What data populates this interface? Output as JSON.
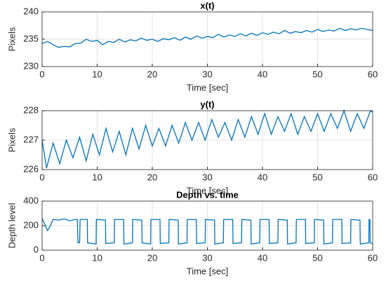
{
  "chart_data": [
    {
      "type": "line",
      "title": "x(t)",
      "xlabel": "Time [sec]",
      "ylabel": "Pixels",
      "color": "#0072bd",
      "grid": true,
      "xlim": [
        0,
        60
      ],
      "xticks": [
        0,
        10,
        20,
        30,
        40,
        50,
        60
      ],
      "ylim": [
        230,
        240
      ],
      "yticks": [
        230,
        235,
        240
      ],
      "x": [
        0,
        1,
        2,
        3,
        4,
        5,
        6,
        7,
        8,
        9,
        10,
        11,
        12,
        13,
        14,
        15,
        16,
        17,
        18,
        19,
        20,
        21,
        22,
        23,
        24,
        25,
        26,
        27,
        28,
        29,
        30,
        31,
        32,
        33,
        34,
        35,
        36,
        37,
        38,
        39,
        40,
        41,
        42,
        43,
        44,
        45,
        46,
        47,
        48,
        49,
        50,
        51,
        52,
        53,
        54,
        55,
        56,
        57,
        58,
        59,
        60
      ],
      "values": [
        234.2,
        234.6,
        234.0,
        233.5,
        233.7,
        233.6,
        234.2,
        234.3,
        235.0,
        234.6,
        234.8,
        234.0,
        234.6,
        234.4,
        235.0,
        234.5,
        234.9,
        234.7,
        235.2,
        234.8,
        235.0,
        234.6,
        235.1,
        234.9,
        235.3,
        234.8,
        235.4,
        235.0,
        235.6,
        235.2,
        235.5,
        235.3,
        235.9,
        235.4,
        235.8,
        235.5,
        236.0,
        235.6,
        236.1,
        235.7,
        236.2,
        235.9,
        236.3,
        236.0,
        236.6,
        236.1,
        236.4,
        236.2,
        236.6,
        236.3,
        236.8,
        236.4,
        236.7,
        236.5,
        237.0,
        236.6,
        236.9,
        236.7,
        237.0,
        236.8,
        236.6
      ]
    },
    {
      "type": "line",
      "title": "y(t)",
      "xlabel": "Time [sec]",
      "ylabel": "Pixels",
      "color": "#0072bd",
      "grid": true,
      "xlim": [
        0,
        60
      ],
      "xticks": [
        0,
        10,
        20,
        30,
        40,
        50,
        60
      ],
      "ylim": [
        226,
        228
      ],
      "yticks": [
        226,
        227,
        228
      ],
      "x": [
        0,
        0.8,
        2.0,
        3.2,
        4.4,
        5.6,
        6.8,
        8.0,
        9.2,
        10.4,
        11.6,
        12.8,
        14.0,
        15.2,
        16.4,
        17.6,
        18.8,
        20.0,
        21.2,
        22.4,
        23.6,
        24.8,
        26.0,
        27.2,
        28.4,
        29.6,
        30.8,
        32.0,
        33.2,
        34.4,
        35.6,
        36.8,
        38.0,
        39.2,
        40.4,
        41.6,
        42.8,
        44.0,
        45.2,
        46.4,
        47.6,
        48.8,
        50.0,
        51.2,
        52.4,
        53.6,
        54.8,
        56.0,
        57.2,
        58.4,
        59.6,
        60
      ],
      "values": [
        227.0,
        226.05,
        226.9,
        226.2,
        227.0,
        226.4,
        227.1,
        226.3,
        227.2,
        226.5,
        227.4,
        226.6,
        227.3,
        226.5,
        227.4,
        226.7,
        227.5,
        226.8,
        227.4,
        226.8,
        227.5,
        226.9,
        227.6,
        227.0,
        227.6,
        227.0,
        227.7,
        227.1,
        227.6,
        227.0,
        227.7,
        227.1,
        227.8,
        227.2,
        227.9,
        227.2,
        227.8,
        227.3,
        227.9,
        227.2,
        227.8,
        227.3,
        227.9,
        227.3,
        227.9,
        227.4,
        228.0,
        227.3,
        227.9,
        227.4,
        228.0,
        227.95
      ]
    },
    {
      "type": "line",
      "title": "Depth vs. time",
      "xlabel": "Time [sec]",
      "ylabel": "Depth level",
      "color": "#0072bd",
      "grid": true,
      "xlim": [
        0,
        60
      ],
      "xticks": [
        0,
        10,
        20,
        30,
        40,
        50,
        60
      ],
      "ylim": [
        0,
        400
      ],
      "yticks": [
        0,
        200,
        400
      ],
      "x": [
        0,
        0.5,
        1,
        1.5,
        2,
        3,
        4,
        5,
        6,
        6.4,
        6.5,
        6.8,
        6.9,
        8.2,
        8.25,
        9.8,
        9.85,
        11.5,
        11.55,
        13.1,
        13.15,
        14.8,
        14.85,
        16.4,
        16.45,
        18.1,
        18.15,
        19.7,
        19.75,
        21.4,
        21.45,
        23.0,
        23.05,
        24.7,
        24.75,
        26.3,
        26.35,
        28.0,
        28.05,
        29.6,
        29.65,
        31.3,
        31.35,
        32.9,
        32.95,
        34.6,
        34.65,
        36.2,
        36.25,
        37.9,
        37.95,
        39.5,
        39.55,
        41.2,
        41.25,
        42.8,
        42.85,
        44.5,
        44.55,
        46.1,
        46.15,
        47.8,
        47.85,
        49.4,
        49.45,
        51.1,
        51.15,
        52.7,
        52.75,
        54.4,
        54.45,
        56.0,
        56.05,
        57.7,
        57.75,
        59.3,
        59.35,
        59.5,
        59.55,
        60
      ],
      "values": [
        260,
        210,
        160,
        200,
        250,
        245,
        255,
        240,
        250,
        250,
        60,
        60,
        250,
        250,
        60,
        50,
        250,
        245,
        55,
        60,
        250,
        250,
        50,
        60,
        250,
        245,
        60,
        50,
        250,
        250,
        55,
        60,
        250,
        245,
        50,
        60,
        250,
        250,
        55,
        60,
        250,
        245,
        50,
        60,
        250,
        250,
        55,
        60,
        250,
        245,
        50,
        60,
        250,
        250,
        55,
        60,
        250,
        245,
        50,
        60,
        250,
        250,
        55,
        60,
        250,
        245,
        50,
        60,
        250,
        250,
        55,
        60,
        250,
        245,
        50,
        60,
        250,
        250,
        60,
        50
      ]
    }
  ]
}
